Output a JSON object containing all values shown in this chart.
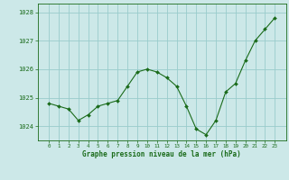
{
  "x": [
    0,
    1,
    2,
    3,
    4,
    5,
    6,
    7,
    8,
    9,
    10,
    11,
    12,
    13,
    14,
    15,
    16,
    17,
    18,
    19,
    20,
    21,
    22,
    23
  ],
  "y": [
    1024.8,
    1024.7,
    1024.6,
    1024.2,
    1024.4,
    1024.7,
    1024.8,
    1024.9,
    1025.4,
    1025.9,
    1026.0,
    1025.9,
    1025.7,
    1025.4,
    1024.7,
    1023.9,
    1023.7,
    1024.2,
    1025.2,
    1025.5,
    1026.3,
    1027.0,
    1027.4,
    1027.8
  ],
  "line_color": "#1a6b1a",
  "marker_color": "#1a6b1a",
  "bg_color": "#cce8e8",
  "grid_color": "#99cccc",
  "axis_label_color": "#1a6b1a",
  "tick_label_color": "#1a6b1a",
  "xlabel": "Graphe pression niveau de la mer (hPa)",
  "ylim": [
    1023.5,
    1028.3
  ],
  "yticks": [
    1024,
    1025,
    1026,
    1027,
    1028
  ],
  "xticks": [
    0,
    1,
    2,
    3,
    4,
    5,
    6,
    7,
    8,
    9,
    10,
    11,
    12,
    13,
    14,
    15,
    16,
    17,
    18,
    19,
    20,
    21,
    22,
    23
  ]
}
